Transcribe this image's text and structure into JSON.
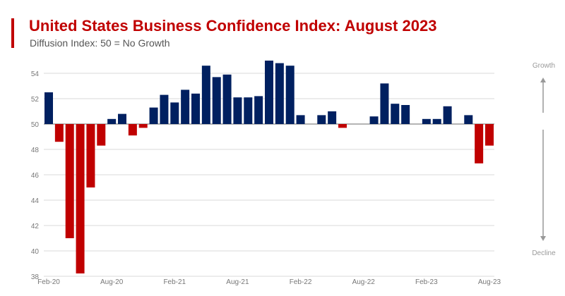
{
  "chart_data": {
    "type": "bar",
    "title": "United States Business Confidence Index: August 2023",
    "subtitle": "Diffusion Index: 50 = No Growth",
    "xlabel": "",
    "ylabel": "",
    "ylim": [
      38,
      55
    ],
    "baseline": 50,
    "grid": true,
    "yticks": [
      38,
      40,
      42,
      44,
      46,
      48,
      50,
      52,
      54
    ],
    "xtick_labels": [
      "Feb-20",
      "Aug-20",
      "Feb-21",
      "Aug-21",
      "Feb-22",
      "Aug-22",
      "Feb-23",
      "Aug-23"
    ],
    "xtick_indices": [
      0,
      6,
      12,
      18,
      24,
      30,
      36,
      42
    ],
    "categories": [
      "Feb-20",
      "Mar-20",
      "Apr-20",
      "May-20",
      "Jun-20",
      "Jul-20",
      "Aug-20",
      "Sep-20",
      "Oct-20",
      "Nov-20",
      "Dec-20",
      "Jan-21",
      "Feb-21",
      "Mar-21",
      "Apr-21",
      "May-21",
      "Jun-21",
      "Jul-21",
      "Aug-21",
      "Sep-21",
      "Oct-21",
      "Nov-21",
      "Dec-21",
      "Jan-22",
      "Feb-22",
      "Mar-22",
      "Apr-22",
      "May-22",
      "Jun-22",
      "Jul-22",
      "Aug-22",
      "Sep-22",
      "Oct-22",
      "Nov-22",
      "Dec-22",
      "Jan-23",
      "Feb-23",
      "Mar-23",
      "Apr-23",
      "May-23",
      "Jun-23",
      "Jul-23",
      "Aug-23"
    ],
    "values": [
      52.5,
      48.6,
      41.0,
      38.0,
      45.0,
      48.3,
      50.4,
      50.8,
      49.1,
      49.7,
      51.3,
      52.3,
      51.7,
      52.7,
      52.4,
      54.6,
      53.7,
      53.9,
      52.1,
      52.1,
      52.2,
      55.0,
      54.8,
      54.6,
      50.7,
      50.0,
      50.7,
      51.0,
      49.7,
      50.0,
      50.0,
      50.6,
      53.2,
      51.6,
      51.5,
      50.0,
      50.4,
      50.4,
      51.4,
      50.0,
      50.7,
      46.9,
      48.3
    ],
    "colors": {
      "growth": "#002060",
      "decline": "#c00000",
      "grid": "#d9d9d9",
      "axis": "#888888"
    },
    "side_labels": {
      "top": "Growth",
      "bottom": "Decline"
    }
  }
}
